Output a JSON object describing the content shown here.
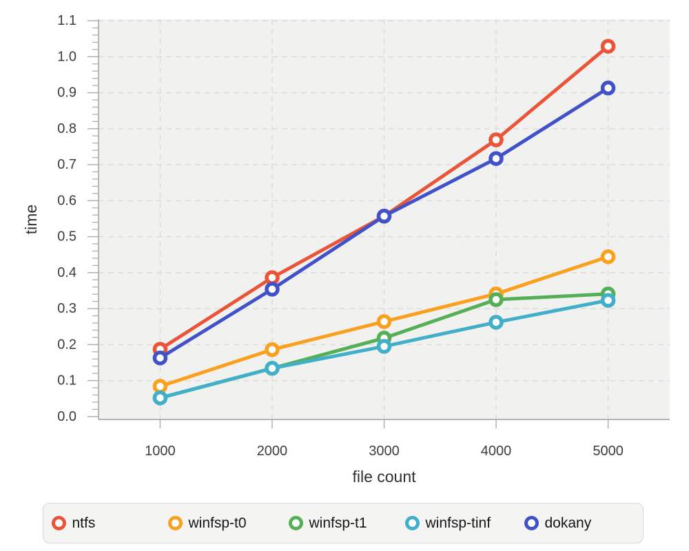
{
  "chart_data": {
    "type": "line",
    "title": "",
    "xlabel": "file count",
    "ylabel": "time",
    "x": [
      1000,
      2000,
      3000,
      4000,
      5000
    ],
    "x_tick_labels": [
      "1000",
      "2000",
      "3000",
      "4000",
      "5000"
    ],
    "y_ticks": [
      0.0,
      0.1,
      0.2,
      0.3,
      0.4,
      0.5,
      0.6,
      0.7,
      0.8,
      0.9,
      1.0,
      1.1
    ],
    "y_tick_labels": [
      "0.0",
      "0.1",
      "0.2",
      "0.3",
      "0.4",
      "0.5",
      "0.6",
      "0.7",
      "0.8",
      "0.9",
      "1.0",
      "1.1"
    ],
    "y_minor_tick_step": 0.02,
    "xlim": [
      450,
      5550
    ],
    "ylim": [
      -0.008,
      1.104
    ],
    "grid": "dashed",
    "legend_position": "bottom",
    "series": [
      {
        "name": "ntfs",
        "color": "#EA5539",
        "values": [
          0.187,
          0.386,
          0.557,
          0.769,
          1.029
        ]
      },
      {
        "name": "winfsp-t0",
        "color": "#F9A11E",
        "values": [
          0.084,
          0.186,
          0.264,
          0.341,
          0.444
        ]
      },
      {
        "name": "winfsp-t1",
        "color": "#54AF57",
        "values": [
          0.052,
          0.134,
          0.218,
          0.325,
          0.341
        ]
      },
      {
        "name": "winfsp-tinf",
        "color": "#41AFC9",
        "values": [
          0.052,
          0.134,
          0.195,
          0.262,
          0.323
        ]
      },
      {
        "name": "dokany",
        "color": "#4152C9",
        "values": [
          0.163,
          0.354,
          0.557,
          0.717,
          0.913
        ]
      }
    ]
  }
}
